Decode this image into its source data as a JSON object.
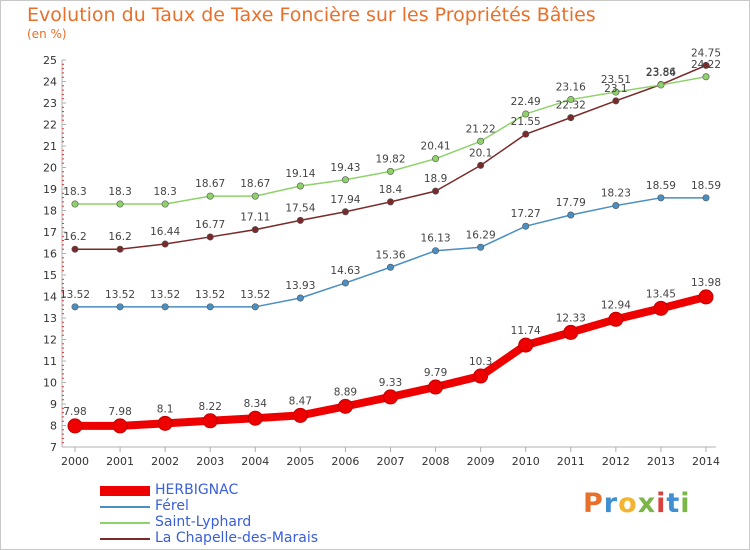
{
  "header": {
    "title": "Evolution du Taux de Taxe Foncière sur les Propriétés Bâties",
    "unit": "(en %)"
  },
  "logo": {
    "text": "Proxiti",
    "colors": [
      "#e8702a",
      "#3f8fd2",
      "#f3b531",
      "#7ab648",
      "#d9413c",
      "#3f8fd2",
      "#7ab648"
    ]
  },
  "chart_data": {
    "type": "line",
    "title": "Evolution du Taux de Taxe Foncière sur les Propriétés Bâties",
    "ylabel": "(en %)",
    "xlabel": "",
    "x": [
      "2000",
      "2001",
      "2002",
      "2003",
      "2004",
      "2005",
      "2006",
      "2007",
      "2008",
      "2009",
      "2010",
      "2011",
      "2012",
      "2013",
      "2014"
    ],
    "ylim": [
      7,
      25
    ],
    "yticks": [
      7,
      8,
      9,
      10,
      11,
      12,
      13,
      14,
      15,
      16,
      17,
      18,
      19,
      20,
      21,
      22,
      23,
      24,
      25
    ],
    "grid": false,
    "legend_position": "bottom-left",
    "series": [
      {
        "name": "HERBIGNAC",
        "color": "#ee0000",
        "values": [
          7.98,
          7.98,
          8.1,
          8.22,
          8.34,
          8.47,
          8.89,
          9.33,
          9.79,
          10.3,
          11.74,
          12.33,
          12.94,
          13.45,
          13.98
        ],
        "labels": [
          "7.98",
          "7.98",
          "8.1",
          "8.22",
          "8.34",
          "8.47",
          "8.89",
          "9.33",
          "9.79",
          "10.3",
          "11.74",
          "12.33",
          "12.94",
          "13.45",
          "13.98"
        ]
      },
      {
        "name": "Férel",
        "color": "#4a8ec2",
        "values": [
          13.52,
          13.52,
          13.52,
          13.52,
          13.52,
          13.93,
          14.63,
          15.36,
          16.13,
          16.29,
          17.27,
          17.79,
          18.23,
          18.59,
          18.59
        ],
        "labels": [
          "13.52",
          "13.52",
          "13.52",
          "13.52",
          "13.52",
          "13.93",
          "14.63",
          "15.36",
          "16.13",
          "16.29",
          "17.27",
          "17.79",
          "18.23",
          "18.59",
          "18.59"
        ]
      },
      {
        "name": "Saint-Lyphard",
        "color": "#8fd16a",
        "values": [
          18.3,
          18.3,
          18.3,
          18.67,
          18.67,
          19.14,
          19.43,
          19.82,
          20.41,
          21.22,
          22.49,
          23.16,
          23.51,
          23.84,
          24.22
        ],
        "labels": [
          "18.3",
          "18.3",
          "18.3",
          "18.67",
          "18.67",
          "19.14",
          "19.43",
          "19.82",
          "20.41",
          "21.22",
          "22.49",
          "23.16",
          "23.51",
          "23.84",
          "24.22"
        ]
      },
      {
        "name": "La Chapelle-des-Marais",
        "color": "#7a2a2a",
        "values": [
          16.2,
          16.2,
          16.44,
          16.77,
          17.11,
          17.54,
          17.94,
          18.4,
          18.9,
          20.1,
          21.55,
          22.32,
          23.1,
          23.86,
          24.75
        ],
        "labels": [
          "16.2",
          "16.2",
          "16.44",
          "16.77",
          "17.11",
          "17.54",
          "17.94",
          "18.4",
          "18.9",
          "20.1",
          "21.55",
          "22.32",
          "23.1",
          "23.86",
          "24.75"
        ]
      }
    ]
  }
}
